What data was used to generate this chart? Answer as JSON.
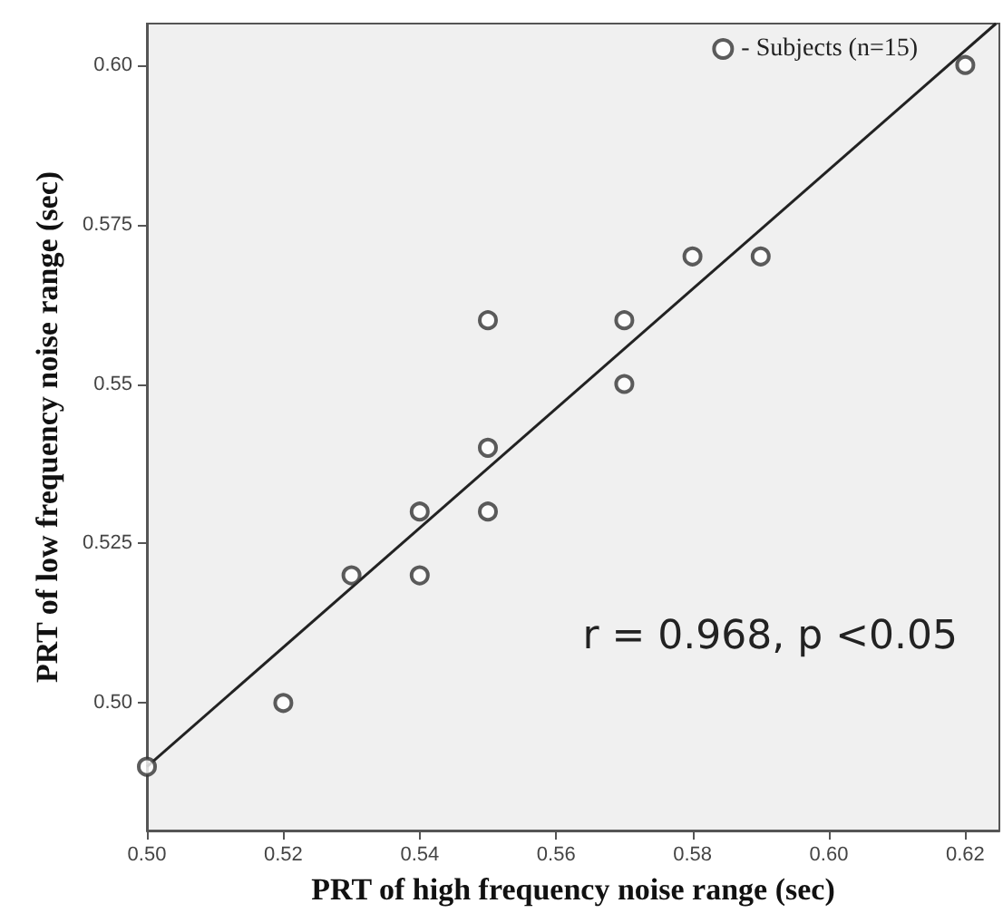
{
  "chart_data": {
    "type": "scatter",
    "xlabel": "PRT of high frequency noise range (sec)",
    "ylabel": "PRT of low frequency noise range (sec)",
    "annotations": [
      "r = 0.968, p <0.05"
    ],
    "series": [
      {
        "name": "- Subjects (n=15)",
        "color": "#333333",
        "marker": "circle",
        "x": [
          0.5,
          0.52,
          0.53,
          0.54,
          0.54,
          0.55,
          0.55,
          0.55,
          0.57,
          0.57,
          0.58,
          0.59,
          0.62
        ],
        "values": [
          0.49,
          0.5,
          0.52,
          0.52,
          0.53,
          0.53,
          0.54,
          0.56,
          0.55,
          0.56,
          0.57,
          0.57,
          0.6
        ]
      },
      {
        "type": "line",
        "color": "#222222",
        "marker": "none",
        "line_style": "solid",
        "x": [
          0.5,
          0.6245
        ],
        "values": [
          0.49,
          0.6065
        ]
      }
    ],
    "xlim": [
      0.5,
      0.625
    ],
    "xticks": [
      {
        "value": 0.5,
        "label": "0.50"
      },
      0.52,
      0.54,
      0.56,
      0.58,
      {
        "value": 0.6,
        "label": "0.60"
      },
      0.62
    ],
    "ylim": [
      0.48,
      0.6065
    ],
    "yticks": [
      {
        "value": 0.5,
        "label": "0.50"
      },
      0.525,
      0.55,
      0.575,
      {
        "value": 0.6,
        "label": "0.60"
      }
    ],
    "grid": false,
    "legend": "top right"
  }
}
